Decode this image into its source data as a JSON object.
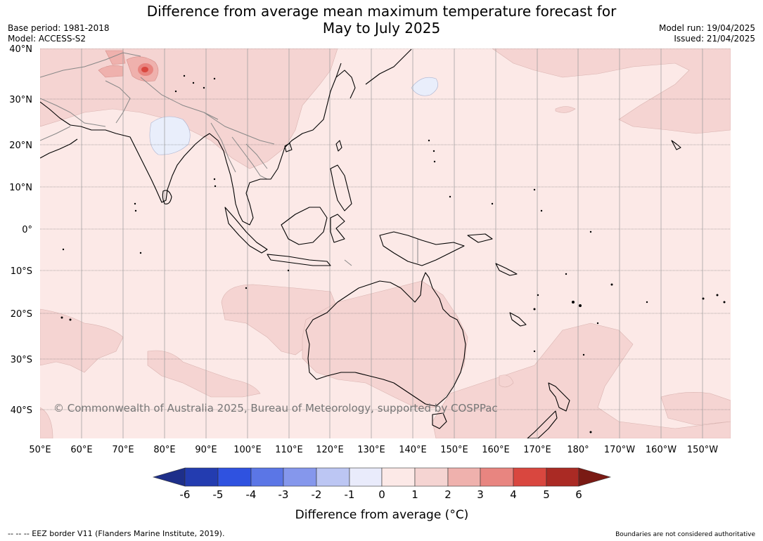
{
  "title": {
    "line1": "Difference from average mean maximum temperature forecast for",
    "line2": "May to July 2025"
  },
  "meta_left": {
    "base_period": "Base period: 1981-2018",
    "model": "Model: ACCESS-S2"
  },
  "meta_right": {
    "model_run": "Model run: 19/04/2025",
    "issued": "Issued: 21/04/2025"
  },
  "map": {
    "lat_labels": [
      "40°N",
      "30°N",
      "20°N",
      "10°N",
      "0°",
      "10°S",
      "20°S",
      "30°S",
      "40°S"
    ],
    "lon_labels": [
      "50°E",
      "60°E",
      "70°E",
      "80°E",
      "90°E",
      "100°E",
      "110°E",
      "120°E",
      "130°E",
      "140°E",
      "150°E",
      "160°E",
      "170°E",
      "180°",
      "170°W",
      "160°W",
      "150°W"
    ],
    "copyright": "© Commonwealth of Australia 2025, Bureau of Meteorology, supported by COSPPac",
    "colors": {
      "ocean_base": "#fce9e7",
      "anomaly_1_2": "#f5d4d2",
      "anomaly_2_3": "#efb1ad",
      "anomaly_3_4": "#e88580",
      "anomaly_4_5": "#d9473f",
      "anomaly_neg": "#e9eefb",
      "coast": "#000000",
      "border": "#888888"
    }
  },
  "colorbar": {
    "title": "Difference from average (",
    "title_unit": "°C)",
    "ticks": [
      "-6",
      "-5",
      "-4",
      "-3",
      "-2",
      "-1",
      "0",
      "1",
      "2",
      "3",
      "4",
      "5",
      "6"
    ],
    "colors": [
      "#1e2f8a",
      "#233cb0",
      "#2f52e0",
      "#5b76e6",
      "#8597ec",
      "#bcc6f3",
      "#e9ebfb",
      "#fce9e7",
      "#f5d4d2",
      "#efb1ad",
      "#e88580",
      "#d9473f",
      "#aa2a24",
      "#7a1a14"
    ]
  },
  "footer": {
    "left": "--  --  -- EEZ border V11 (Flanders Marine Institute, 2019).",
    "right": "Boundaries are not considered authoritative"
  }
}
